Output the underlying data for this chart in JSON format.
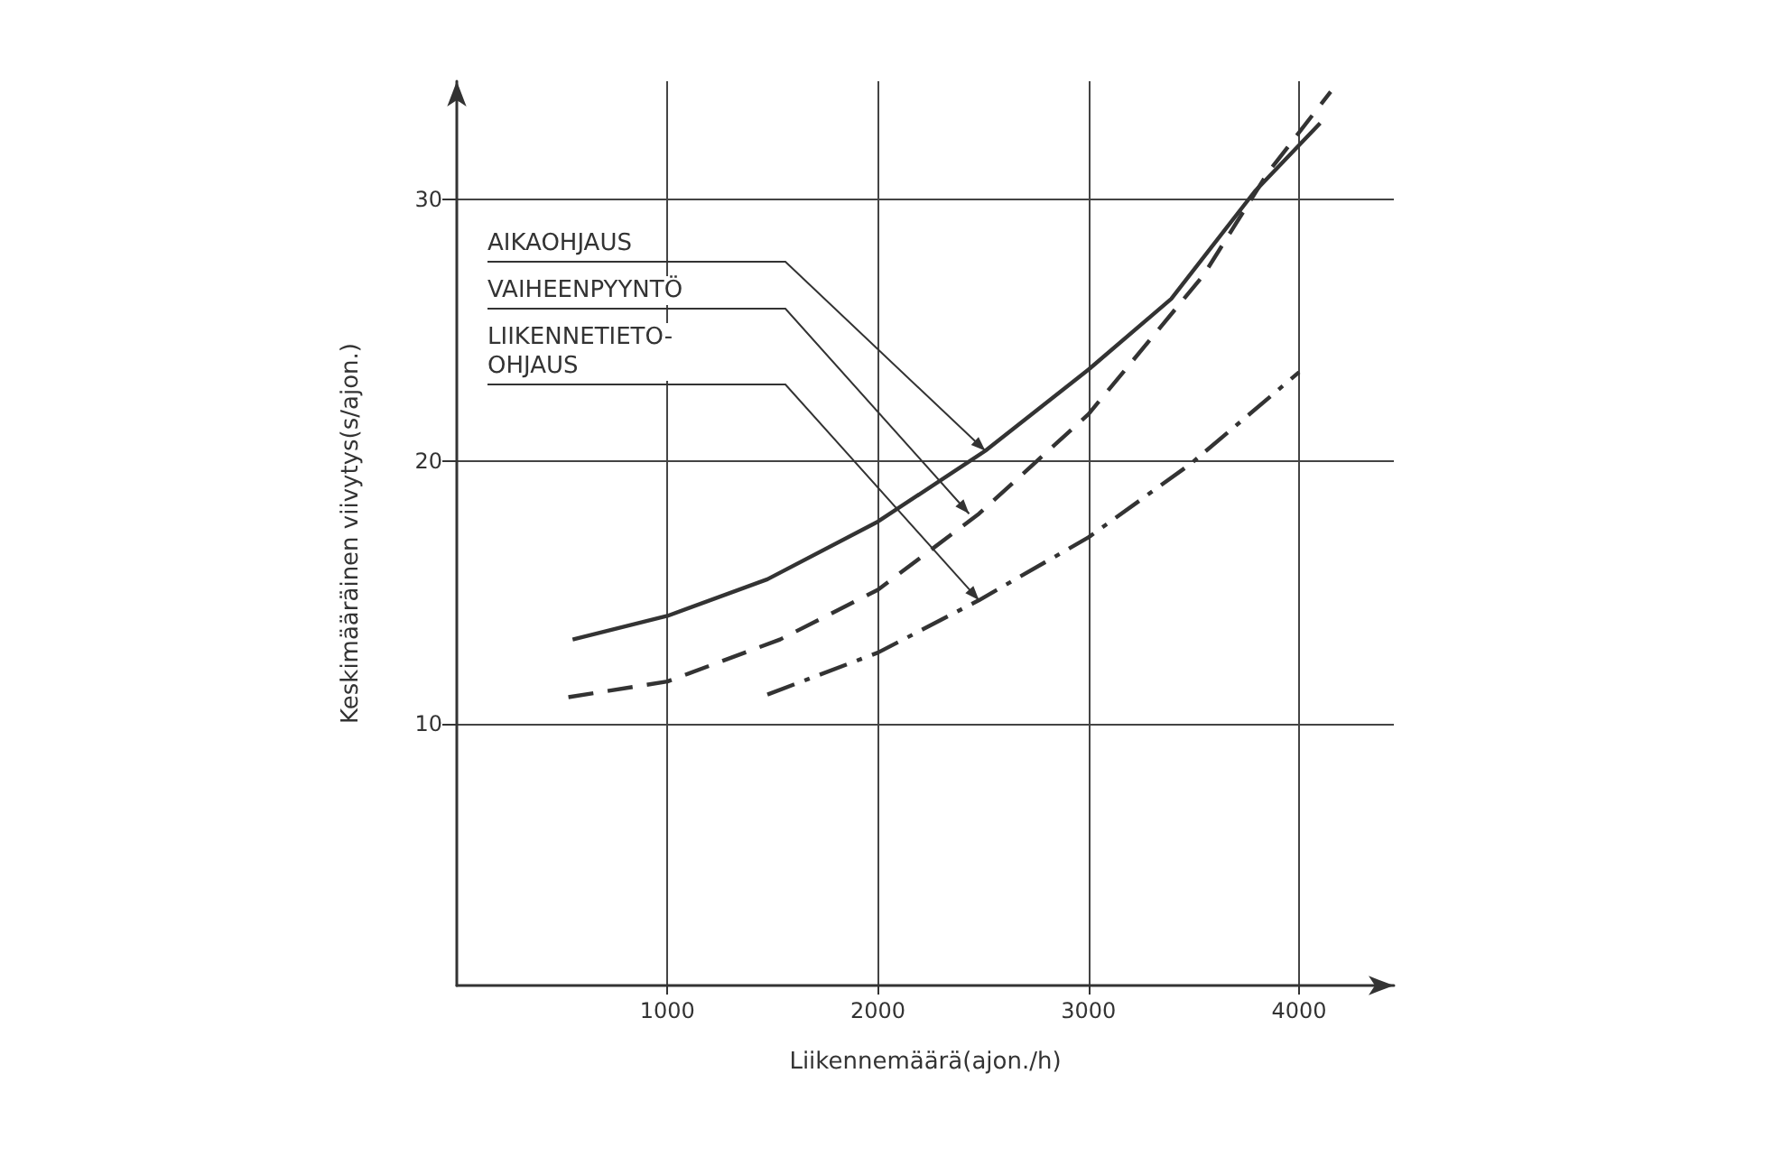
{
  "chart_data": {
    "type": "line",
    "xlabel": "Liikennemäärä(ajon./h)",
    "ylabel": "Keskimääräinen viivytys(s/ajon.)",
    "xlim": [
      0,
      4450
    ],
    "xticks": [
      1000,
      2000,
      3000,
      4000
    ],
    "ylim": [
      0,
      34.5
    ],
    "yticks": [
      10,
      20,
      30
    ],
    "grid": true,
    "marker": "none",
    "series": [
      {
        "color": "#333333",
        "line_style": "solid",
        "x": [
          550,
          1000,
          1475,
          2000,
          2510,
          3000,
          3393,
          3790,
          4100
        ],
        "values": [
          13.2,
          14.1,
          15.5,
          17.7,
          20.4,
          23.5,
          26.2,
          30.3,
          32.9
        ]
      },
      {
        "color": "#333333",
        "line_style": "dashed",
        "x": [
          530,
          1000,
          1535,
          2000,
          2480,
          3000,
          3546,
          3851,
          4150
        ],
        "values": [
          11.0,
          11.6,
          13.2,
          15.1,
          18.0,
          21.8,
          27.1,
          31.0,
          34.1
        ]
      },
      {
        "color": "#333333",
        "line_style": "dashdot",
        "x": [
          1475,
          2000,
          2480,
          3000,
          3485,
          4000
        ],
        "values": [
          11.1,
          12.7,
          14.7,
          17.1,
          19.9,
          23.4
        ]
      }
    ],
    "annotations": [
      {
        "text": "AIKAOHJAUS",
        "x": 2510,
        "y": 20.4
      },
      {
        "text": "VAIHEENPYYNTÖ",
        "x": 2433,
        "y": 18.0
      },
      {
        "text": "LIIKENNETIETO-\nOHJAUS",
        "x": 2480,
        "y": 14.7
      }
    ]
  }
}
